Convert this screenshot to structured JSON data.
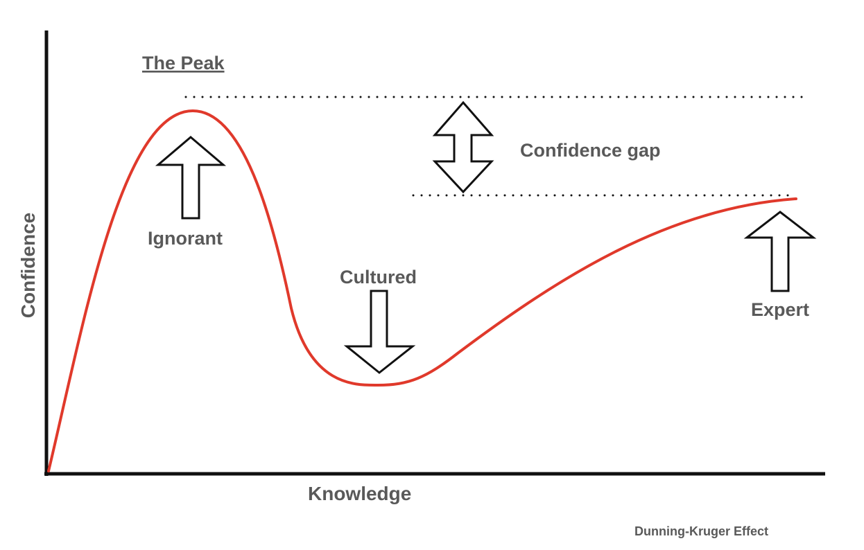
{
  "title": "The Peak",
  "footer": "Dunning-Kruger Effect",
  "axes": {
    "x_label": "Knowledge",
    "y_label": "Confidence"
  },
  "annotations": {
    "ignorant": "Ignorant",
    "cultured": "Cultured",
    "expert": "Expert",
    "confidence_gap": "Confidence gap"
  },
  "colors": {
    "curve": "#e0392b",
    "axis": "#111111",
    "text": "#595959"
  }
}
